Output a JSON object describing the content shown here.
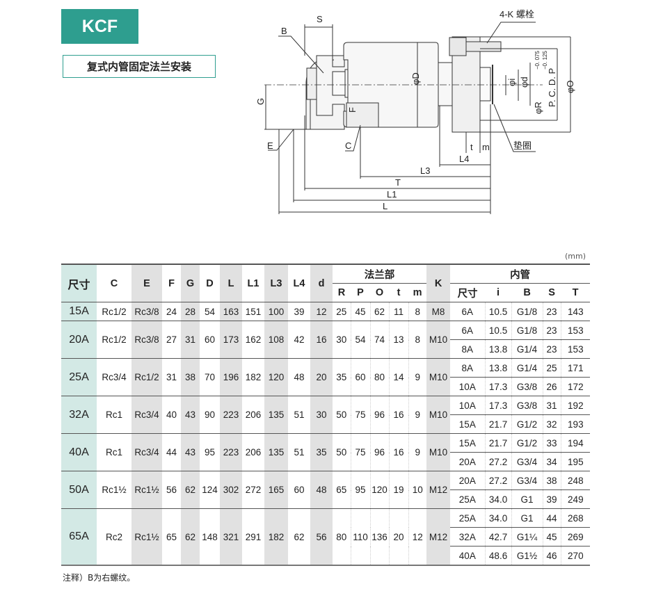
{
  "badge": "KCF",
  "subtitle": "复式内管固定法兰安装",
  "drawing": {
    "labels": {
      "S": "S",
      "B": "B",
      "G": "G",
      "E": "E",
      "F": "F",
      "C": "C",
      "D": "φD",
      "bolt": "4-K 螺栓",
      "i": "φi",
      "d": "φd",
      "R": "φR",
      "R_tol_upper": "−0. 075",
      "R_tol_lower": "−0. 125",
      "PCD": "P. C. D. P",
      "O": "φO",
      "t": "t",
      "m": "m",
      "gasket": "垫圈",
      "L4": "L4",
      "L3": "L3",
      "T": "T",
      "L1": "L1",
      "L": "L"
    }
  },
  "unit": "(mm)",
  "table": {
    "headers": {
      "size": "尺寸",
      "C": "C",
      "E": "E",
      "F": "F",
      "G": "G",
      "D": "D",
      "L": "L",
      "L1": "L1",
      "L3": "L3",
      "L4": "L4",
      "d": "d",
      "flange": "法兰部",
      "R": "R",
      "P": "P",
      "O": "O",
      "t": "t",
      "m": "m",
      "K": "K",
      "inner": "内管",
      "inner_size": "尺寸",
      "i": "i",
      "B": "B",
      "S": "S",
      "T": "T"
    },
    "rows": [
      {
        "size": "15A",
        "C": "Rc1/2",
        "E": "Rc3/8",
        "F": "24",
        "G": "28",
        "D": "54",
        "L": "163",
        "L1": "151",
        "L3": "100",
        "L4": "39",
        "d": "12",
        "R": "25",
        "P": "45",
        "O": "62",
        "t": "11",
        "m": "8",
        "K": "M8",
        "inner": [
          [
            "6A",
            "10.5",
            "G1/8",
            "23",
            "143"
          ]
        ]
      },
      {
        "size": "20A",
        "C": "Rc1/2",
        "E": "Rc3/8",
        "F": "27",
        "G": "31",
        "D": "60",
        "L": "173",
        "L1": "162",
        "L3": "108",
        "L4": "42",
        "d": "16",
        "R": "30",
        "P": "54",
        "O": "74",
        "t": "13",
        "m": "8",
        "K": "M10",
        "inner": [
          [
            "6A",
            "10.5",
            "G1/8",
            "23",
            "153"
          ],
          [
            "8A",
            "13.8",
            "G1/4",
            "23",
            "153"
          ]
        ]
      },
      {
        "size": "25A",
        "C": "Rc3/4",
        "E": "Rc1/2",
        "F": "31",
        "G": "38",
        "D": "70",
        "L": "196",
        "L1": "182",
        "L3": "120",
        "L4": "48",
        "d": "20",
        "R": "35",
        "P": "60",
        "O": "80",
        "t": "14",
        "m": "9",
        "K": "M10",
        "inner": [
          [
            "8A",
            "13.8",
            "G1/4",
            "25",
            "171"
          ],
          [
            "10A",
            "17.3",
            "G3/8",
            "26",
            "172"
          ]
        ]
      },
      {
        "size": "32A",
        "C": "Rc1",
        "E": "Rc3/4",
        "F": "40",
        "G": "43",
        "D": "90",
        "L": "223",
        "L1": "206",
        "L3": "135",
        "L4": "51",
        "d": "30",
        "R": "50",
        "P": "75",
        "O": "96",
        "t": "16",
        "m": "9",
        "K": "M10",
        "inner": [
          [
            "10A",
            "17.3",
            "G3/8",
            "31",
            "192"
          ],
          [
            "15A",
            "21.7",
            "G1/2",
            "32",
            "193"
          ]
        ]
      },
      {
        "size": "40A",
        "C": "Rc1",
        "E": "Rc3/4",
        "F": "44",
        "G": "43",
        "D": "95",
        "L": "223",
        "L1": "206",
        "L3": "135",
        "L4": "51",
        "d": "35",
        "R": "50",
        "P": "75",
        "O": "96",
        "t": "16",
        "m": "9",
        "K": "M10",
        "inner": [
          [
            "15A",
            "21.7",
            "G1/2",
            "33",
            "194"
          ],
          [
            "20A",
            "27.2",
            "G3/4",
            "34",
            "195"
          ]
        ]
      },
      {
        "size": "50A",
        "C": "Rc1½",
        "E": "Rc1½",
        "F": "56",
        "G": "62",
        "D": "124",
        "L": "302",
        "L1": "272",
        "L3": "165",
        "L4": "60",
        "d": "48",
        "R": "65",
        "P": "95",
        "O": "120",
        "t": "19",
        "m": "10",
        "K": "M12",
        "inner": [
          [
            "20A",
            "27.2",
            "G3/4",
            "38",
            "248"
          ],
          [
            "25A",
            "34.0",
            "G1",
            "39",
            "249"
          ]
        ]
      },
      {
        "size": "65A",
        "C": "Rc2",
        "E": "Rc1½",
        "F": "65",
        "G": "62",
        "D": "148",
        "L": "321",
        "L1": "291",
        "L3": "182",
        "L4": "62",
        "d": "56",
        "R": "80",
        "P": "110",
        "O": "136",
        "t": "20",
        "m": "12",
        "K": "M12",
        "inner": [
          [
            "25A",
            "34.0",
            "G1",
            "44",
            "268"
          ],
          [
            "32A",
            "42.7",
            "G1¼",
            "45",
            "269"
          ],
          [
            "40A",
            "48.6",
            "G1½",
            "46",
            "270"
          ]
        ]
      }
    ]
  },
  "note": "注释）B为右螺纹。"
}
